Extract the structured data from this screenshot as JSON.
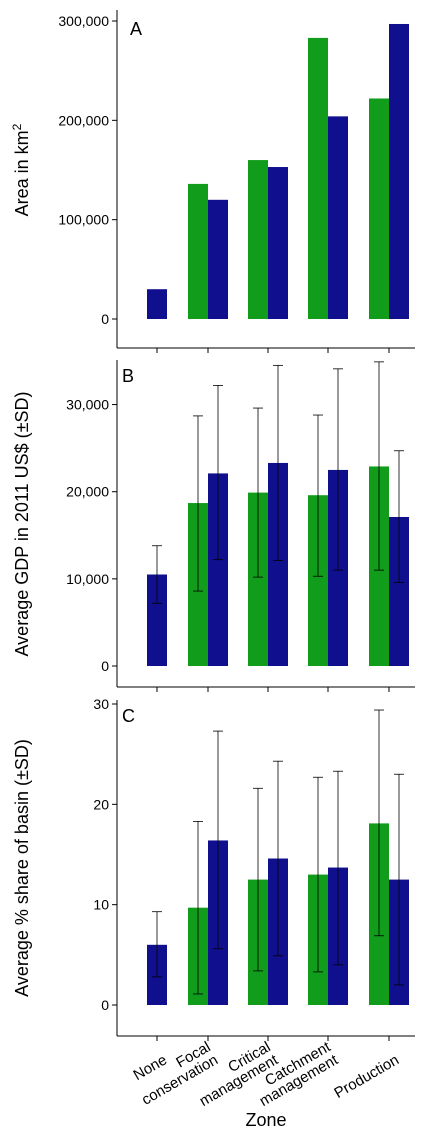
{
  "colors": {
    "green": "#129c1c",
    "blue": "#10108f"
  },
  "xlabel": "Zone",
  "categories": [
    {
      "lines": [
        "None"
      ]
    },
    {
      "lines": [
        "Focal",
        "conservation"
      ]
    },
    {
      "lines": [
        "Critical",
        "management"
      ]
    },
    {
      "lines": [
        "Catchment",
        "management"
      ]
    },
    {
      "lines": [
        "Production"
      ]
    }
  ],
  "chart_data": [
    {
      "type": "bar",
      "panel_label": "A",
      "ylabel": "Area in km",
      "ylabel_superscript": "2",
      "ylim": [
        0,
        300000
      ],
      "yticks": [
        0,
        100000,
        200000,
        300000
      ],
      "ytick_labels": [
        "0",
        "100,000",
        "200,000",
        "300,000"
      ],
      "categories": [
        "None",
        "Focal conservation",
        "Critical management",
        "Catchment management",
        "Production"
      ],
      "series": [
        {
          "color": "#129c1c",
          "values": [
            null,
            136000,
            160000,
            283000,
            222000
          ]
        },
        {
          "color": "#10108f",
          "values": [
            30000,
            120000,
            153000,
            204000,
            297000
          ]
        }
      ]
    },
    {
      "type": "bar",
      "panel_label": "B",
      "ylabel": "Average GDP in 2011 US$ (±SD)",
      "ylim": [
        0,
        35000
      ],
      "yticks": [
        0,
        10000,
        20000,
        30000
      ],
      "ytick_labels": [
        "0",
        "10,000",
        "20,000",
        "30,000"
      ],
      "categories": [
        "None",
        "Focal conservation",
        "Critical management",
        "Catchment management",
        "Production"
      ],
      "series": [
        {
          "color": "#129c1c",
          "values": [
            null,
            18700,
            19900,
            19600,
            22900
          ],
          "err_low": [
            null,
            8600,
            10200,
            10300,
            11000
          ],
          "err_high": [
            null,
            28700,
            29600,
            28800,
            34900
          ]
        },
        {
          "color": "#10108f",
          "values": [
            10500,
            22100,
            23300,
            22500,
            17100
          ],
          "err_low": [
            7200,
            12200,
            12100,
            11000,
            9600
          ],
          "err_high": [
            13800,
            32200,
            34500,
            34100,
            24700
          ]
        }
      ]
    },
    {
      "type": "bar",
      "panel_label": "C",
      "ylabel": "Average % share of basin (±SD)",
      "ylim": [
        0,
        30
      ],
      "yticks": [
        0,
        10,
        20,
        30
      ],
      "ytick_labels": [
        "0",
        "10",
        "20",
        "30"
      ],
      "categories": [
        "None",
        "Focal conservation",
        "Critical management",
        "Catchment management",
        "Production"
      ],
      "series": [
        {
          "color": "#129c1c",
          "values": [
            null,
            9.7,
            12.5,
            13.0,
            18.1
          ],
          "err_low": [
            null,
            1.1,
            3.4,
            3.3,
            6.9
          ],
          "err_high": [
            null,
            18.3,
            21.6,
            22.7,
            29.4
          ]
        },
        {
          "color": "#10108f",
          "values": [
            6.0,
            16.4,
            14.6,
            13.7,
            12.5
          ],
          "err_low": [
            2.8,
            5.6,
            4.9,
            4.0,
            2.0
          ],
          "err_high": [
            9.3,
            27.3,
            24.3,
            23.3,
            23.0
          ]
        }
      ]
    }
  ]
}
